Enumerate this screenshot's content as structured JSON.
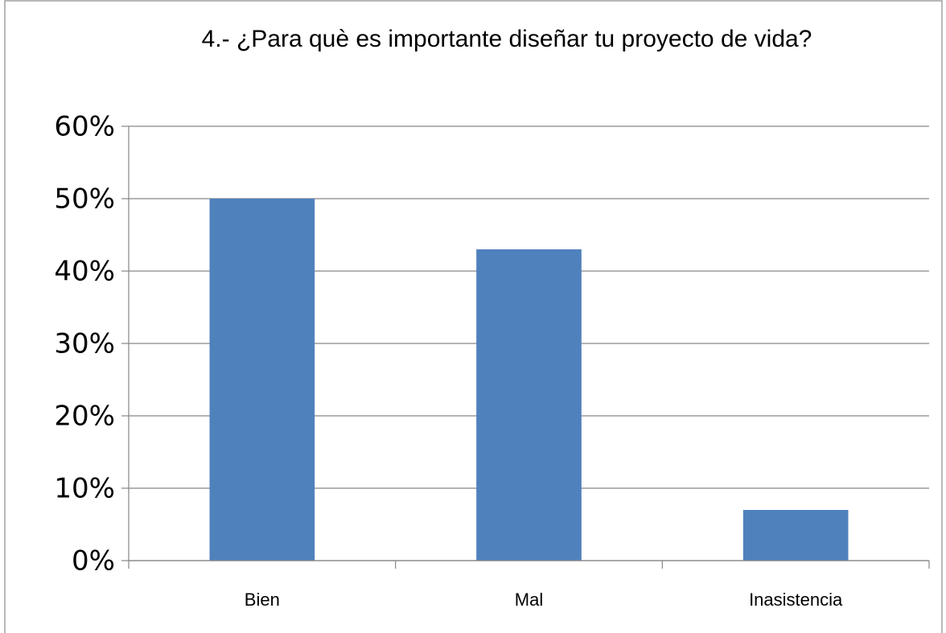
{
  "chart_data": {
    "type": "bar",
    "title": "4.- ¿Para què es importante diseñar tu proyecto de vida?",
    "categories": [
      "Bien",
      "Mal",
      "Inasistencia"
    ],
    "values": [
      50,
      43,
      7
    ],
    "color": "#4f81bd",
    "ylim": [
      0,
      60
    ],
    "yticks": [
      {
        "value": 0,
        "label": "0%"
      },
      {
        "value": 10,
        "label": "10%"
      },
      {
        "value": 20,
        "label": "20%"
      },
      {
        "value": 30,
        "label": "30%"
      },
      {
        "value": 40,
        "label": "40%"
      },
      {
        "value": 50,
        "label": "50%"
      },
      {
        "value": 60,
        "label": "60%"
      }
    ],
    "grid": true
  }
}
